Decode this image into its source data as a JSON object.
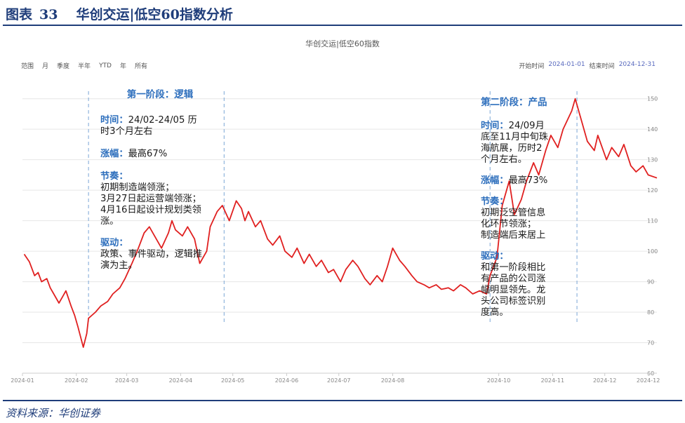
{
  "figure": {
    "label": "图表",
    "number": "33",
    "title": "华创交运|低空60指数分析"
  },
  "source": "资料来源：华创证券",
  "range_selector": {
    "label": "范围",
    "buttons": [
      "月",
      "季度",
      "半年",
      "YTD",
      "年",
      "所有"
    ]
  },
  "date_range": {
    "start_label": "开始时间",
    "start": "2024-01-01",
    "end_label": "结束时间",
    "end": "2024-12-31"
  },
  "colors": {
    "line": "#e02020",
    "title": "#1f3d7a",
    "annotation_heading": "#2e6fbd",
    "phase_divider": "#7aa6d6"
  },
  "annotations": {
    "phase1": {
      "title": "第一阶段：逻辑",
      "time_head": "时间：",
      "time_text": "24/02-24/05 历",
      "time_cont": "时3个月左右",
      "gain_head": "涨幅：",
      "gain_text": "最高67%",
      "rhythm_head": "节奏：",
      "rhythm_lines": [
        "初期制造端领涨；",
        "3月27日起运营端领涨；",
        "4月16日起设计规划类领",
        "涨。"
      ],
      "driver_head": "驱动：",
      "driver_lines": [
        "政策、事件驱动，逻辑推",
        "演为主。"
      ]
    },
    "phase2": {
      "title": "第二阶段：产品",
      "time_head": "时间：",
      "time_text": "24/09月",
      "time_lines": [
        "底至11月中旬珠",
        "海航展，历时2",
        "个月左右。"
      ],
      "gain_head": "涨幅：",
      "gain_text": "最高73%",
      "rhythm_head": "节奏：",
      "rhythm_lines": [
        "初期泛空管信息",
        "化环节领涨；",
        "制造端后来居上"
      ],
      "driver_head": "驱动：",
      "driver_lines": [
        "和第一阶段相比",
        "有产品的公司涨",
        "幅明显领先。龙",
        "头公司标签识别",
        "度高。"
      ]
    }
  },
  "chart_data": {
    "type": "line",
    "title": "华创交运|低空60指数",
    "xlabel": "",
    "ylabel": "",
    "ylim": [
      60,
      152
    ],
    "yticks": [
      60,
      70,
      80,
      90,
      100,
      110,
      120,
      130,
      140,
      150
    ],
    "xticks": [
      {
        "date": "2024-01-01",
        "label": "2024-01"
      },
      {
        "date": "2024-02-01",
        "label": "2024-02"
      },
      {
        "date": "2024-03-01",
        "label": "2024-03"
      },
      {
        "date": "2024-04-01",
        "label": "2024-04"
      },
      {
        "date": "2024-05-01",
        "label": "2024-05"
      },
      {
        "date": "2024-06-01",
        "label": "2024-06"
      },
      {
        "date": "2024-07-01",
        "label": "2024-07"
      },
      {
        "date": "2024-08-01",
        "label": "2024-08"
      },
      {
        "date": "2024-10-01",
        "label": "2024-10"
      },
      {
        "date": "2024-11-01",
        "label": "2024-11"
      },
      {
        "date": "2024-12-01",
        "label": "2024-12"
      },
      {
        "date": "2024-12-26",
        "label": "2024-12"
      }
    ],
    "grid": true,
    "phase_markers": [
      "2024-02-08",
      "2024-04-26",
      "2024-09-26",
      "2024-11-15"
    ],
    "series": [
      {
        "points": [
          [
            "2024-01-02",
            99.0
          ],
          [
            "2024-01-05",
            96.5
          ],
          [
            "2024-01-08",
            92.0
          ],
          [
            "2024-01-10",
            93.0
          ],
          [
            "2024-01-12",
            90.0
          ],
          [
            "2024-01-15",
            91.0
          ],
          [
            "2024-01-17",
            88.0
          ],
          [
            "2024-01-19",
            86.0
          ],
          [
            "2024-01-22",
            83.0
          ],
          [
            "2024-01-24",
            85.0
          ],
          [
            "2024-01-26",
            87.0
          ],
          [
            "2024-01-29",
            82.0
          ],
          [
            "2024-01-31",
            79.0
          ],
          [
            "2024-02-02",
            75.0
          ],
          [
            "2024-02-05",
            68.5
          ],
          [
            "2024-02-07",
            73.0
          ],
          [
            "2024-02-08",
            78.0
          ],
          [
            "2024-02-12",
            80.0
          ],
          [
            "2024-02-15",
            82.0
          ],
          [
            "2024-02-19",
            83.5
          ],
          [
            "2024-02-22",
            86.0
          ],
          [
            "2024-02-26",
            88.0
          ],
          [
            "2024-02-29",
            91.0
          ],
          [
            "2024-03-04",
            96.0
          ],
          [
            "2024-03-07",
            100.0
          ],
          [
            "2024-03-11",
            106.0
          ],
          [
            "2024-03-14",
            108.0
          ],
          [
            "2024-03-18",
            104.0
          ],
          [
            "2024-03-21",
            101.0
          ],
          [
            "2024-03-25",
            106.0
          ],
          [
            "2024-03-27",
            110.0
          ],
          [
            "2024-03-29",
            107.0
          ],
          [
            "2024-04-02",
            105.0
          ],
          [
            "2024-04-05",
            108.0
          ],
          [
            "2024-04-09",
            104.0
          ],
          [
            "2024-04-12",
            96.0
          ],
          [
            "2024-04-16",
            100.0
          ],
          [
            "2024-04-18",
            108.0
          ],
          [
            "2024-04-22",
            113.0
          ],
          [
            "2024-04-25",
            115.0
          ],
          [
            "2024-04-29",
            110.0
          ],
          [
            "2024-05-03",
            116.5
          ],
          [
            "2024-05-06",
            114.0
          ],
          [
            "2024-05-08",
            110.0
          ],
          [
            "2024-05-10",
            113.0
          ],
          [
            "2024-05-14",
            108.0
          ],
          [
            "2024-05-17",
            110.0
          ],
          [
            "2024-05-21",
            104.0
          ],
          [
            "2024-05-24",
            102.0
          ],
          [
            "2024-05-28",
            105.0
          ],
          [
            "2024-05-31",
            100.0
          ],
          [
            "2024-06-04",
            98.0
          ],
          [
            "2024-06-07",
            101.0
          ],
          [
            "2024-06-11",
            96.0
          ],
          [
            "2024-06-14",
            99.0
          ],
          [
            "2024-06-18",
            95.0
          ],
          [
            "2024-06-21",
            97.0
          ],
          [
            "2024-06-25",
            93.0
          ],
          [
            "2024-06-28",
            94.0
          ],
          [
            "2024-07-02",
            90.0
          ],
          [
            "2024-07-05",
            94.0
          ],
          [
            "2024-07-09",
            97.0
          ],
          [
            "2024-07-12",
            95.0
          ],
          [
            "2024-07-16",
            91.0
          ],
          [
            "2024-07-19",
            89.0
          ],
          [
            "2024-07-23",
            92.0
          ],
          [
            "2024-07-26",
            90.0
          ],
          [
            "2024-07-29",
            95.0
          ],
          [
            "2024-08-01",
            101.0
          ],
          [
            "2024-08-05",
            97.0
          ],
          [
            "2024-08-08",
            95.0
          ],
          [
            "2024-08-12",
            92.0
          ],
          [
            "2024-08-15",
            90.0
          ],
          [
            "2024-08-19",
            89.0
          ],
          [
            "2024-08-22",
            88.0
          ],
          [
            "2024-08-26",
            89.0
          ],
          [
            "2024-08-29",
            87.5
          ],
          [
            "2024-09-02",
            88.0
          ],
          [
            "2024-09-05",
            87.0
          ],
          [
            "2024-09-09",
            89.0
          ],
          [
            "2024-09-12",
            88.0
          ],
          [
            "2024-09-16",
            86.0
          ],
          [
            "2024-09-20",
            87.0
          ],
          [
            "2024-09-24",
            86.0
          ],
          [
            "2024-09-26",
            92.0
          ],
          [
            "2024-09-30",
            98.0
          ],
          [
            "2024-10-03",
            115.0
          ],
          [
            "2024-10-07",
            123.0
          ],
          [
            "2024-10-10",
            112.0
          ],
          [
            "2024-10-14",
            117.0
          ],
          [
            "2024-10-17",
            123.0
          ],
          [
            "2024-10-21",
            129.0
          ],
          [
            "2024-10-24",
            125.0
          ],
          [
            "2024-10-28",
            133.0
          ],
          [
            "2024-10-31",
            138.0
          ],
          [
            "2024-11-04",
            134.0
          ],
          [
            "2024-11-07",
            140.0
          ],
          [
            "2024-11-12",
            146.0
          ],
          [
            "2024-11-14",
            150.0
          ],
          [
            "2024-11-18",
            142.0
          ],
          [
            "2024-11-21",
            136.0
          ],
          [
            "2024-11-25",
            133.0
          ],
          [
            "2024-11-27",
            138.0
          ],
          [
            "2024-12-02",
            130.0
          ],
          [
            "2024-12-05",
            134.0
          ],
          [
            "2024-12-09",
            131.0
          ],
          [
            "2024-12-12",
            135.0
          ],
          [
            "2024-12-16",
            128.0
          ],
          [
            "2024-12-19",
            126.0
          ],
          [
            "2024-12-23",
            128.0
          ],
          [
            "2024-12-26",
            125.0
          ],
          [
            "2024-12-31",
            124.0
          ]
        ]
      }
    ]
  }
}
